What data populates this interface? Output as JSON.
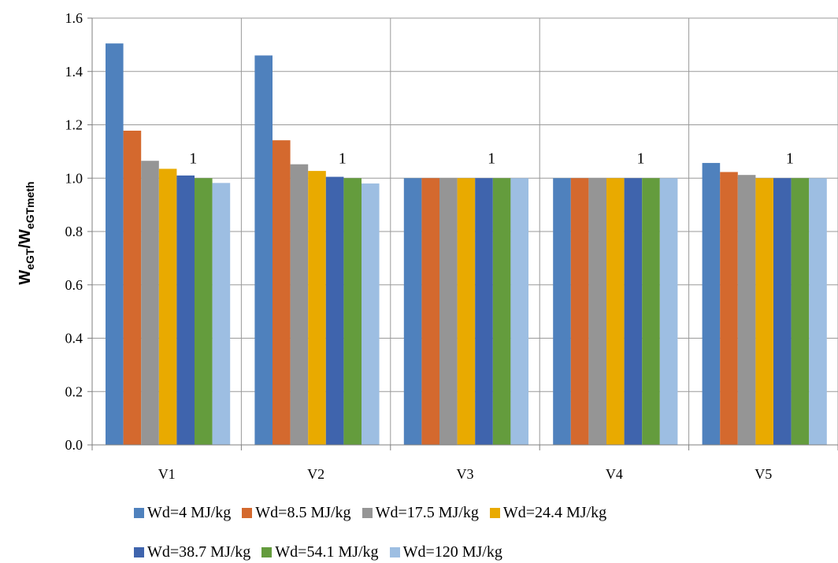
{
  "chart_data": {
    "type": "bar",
    "title": "",
    "xlabel": "",
    "ylabel_main": "W",
    "ylabel_sub1": "eGT",
    "ylabel_sep": "/W",
    "ylabel_sub2": "eGTmeth",
    "ylim": [
      0,
      1.6
    ],
    "yticks": [
      "0.0",
      "0.2",
      "0.4",
      "0.6",
      "0.8",
      "1.0",
      "1.2",
      "1.4",
      "1.6"
    ],
    "categories": [
      "V1",
      "V2",
      "V3",
      "V4",
      "V5"
    ],
    "grid": true,
    "legend_position": "bottom",
    "series": [
      {
        "name": "Wd=4 MJ/kg",
        "color": "#4f81bd",
        "values": [
          1.505,
          1.46,
          1.0,
          1.0,
          1.057
        ]
      },
      {
        "name": "Wd=8.5 MJ/kg",
        "color": "#d4692e",
        "values": [
          1.178,
          1.142,
          1.0,
          1.0,
          1.023
        ]
      },
      {
        "name": "Wd=17.5 MJ/kg",
        "color": "#959595",
        "values": [
          1.065,
          1.052,
          1.0,
          1.0,
          1.012
        ]
      },
      {
        "name": "Wd=24.4 MJ/kg",
        "color": "#e9aa00",
        "values": [
          1.035,
          1.027,
          1.0,
          1.0,
          1.0
        ]
      },
      {
        "name": "Wd=38.7 MJ/kg",
        "color": "#3f64ad",
        "values": [
          1.01,
          1.005,
          1.0,
          1.0,
          1.0
        ]
      },
      {
        "name": "Wd=54.1 MJ/kg",
        "color": "#649c3d",
        "values": [
          1.0,
          1.0,
          1.0,
          1.0,
          1.0
        ]
      },
      {
        "name": "Wd=120 MJ/kg",
        "color": "#9dbee2",
        "values": [
          0.982,
          0.98,
          1.0,
          1.0,
          1.0
        ]
      }
    ],
    "data_labels": [
      {
        "category": "V1",
        "series": "Wd=54.1 MJ/kg",
        "text": "1"
      },
      {
        "category": "V2",
        "series": "Wd=54.1 MJ/kg",
        "text": "1"
      },
      {
        "category": "V3",
        "series": "Wd=54.1 MJ/kg",
        "text": "1"
      },
      {
        "category": "V4",
        "series": "Wd=54.1 MJ/kg",
        "text": "1"
      },
      {
        "category": "V5",
        "series": "Wd=54.1 MJ/kg",
        "text": "1"
      }
    ]
  }
}
